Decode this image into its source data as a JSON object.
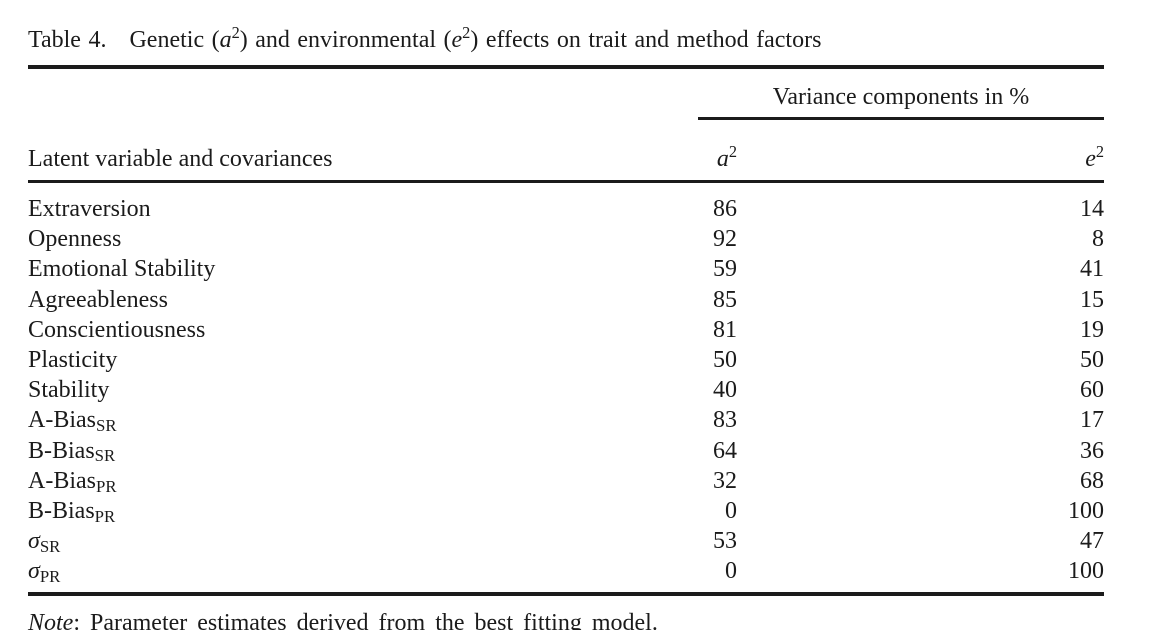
{
  "caption": {
    "label": "Table 4.",
    "part1": "Genetic (",
    "var1": "a",
    "sup1": "2",
    "part2": ") and environmental (",
    "var2": "e",
    "sup2": "2",
    "part3": ") effects on trait and method factors"
  },
  "table": {
    "spanner": "Variance components in %",
    "stub_header": "Latent variable and covariances",
    "col_a": {
      "base": "a",
      "sup": "2"
    },
    "col_e": {
      "base": "e",
      "sup": "2"
    },
    "rows": [
      {
        "label": "Extraversion",
        "sub": "",
        "kind": "name",
        "a2": "86",
        "e2": "14"
      },
      {
        "label": "Openness",
        "sub": "",
        "kind": "name",
        "a2": "92",
        "e2": "8"
      },
      {
        "label": "Emotional Stability",
        "sub": "",
        "kind": "name",
        "a2": "59",
        "e2": "41"
      },
      {
        "label": "Agreeableness",
        "sub": "",
        "kind": "name",
        "a2": "85",
        "e2": "15"
      },
      {
        "label": "Conscientiousness",
        "sub": "",
        "kind": "name",
        "a2": "81",
        "e2": "19"
      },
      {
        "label": "Plasticity",
        "sub": "",
        "kind": "name",
        "a2": "50",
        "e2": "50"
      },
      {
        "label": "Stability",
        "sub": "",
        "kind": "name",
        "a2": "40",
        "e2": "60"
      },
      {
        "label": "A-Bias",
        "sub": "SR",
        "kind": "name",
        "a2": "83",
        "e2": "17"
      },
      {
        "label": "B-Bias",
        "sub": "SR",
        "kind": "name",
        "a2": "64",
        "e2": "36"
      },
      {
        "label": "A-Bias",
        "sub": "PR",
        "kind": "name",
        "a2": "32",
        "e2": "68"
      },
      {
        "label": "B-Bias",
        "sub": "PR",
        "kind": "name",
        "a2": "0",
        "e2": "100"
      },
      {
        "label": "σ",
        "sub": "SR",
        "kind": "symbol",
        "a2": "53",
        "e2": "47"
      },
      {
        "label": "σ",
        "sub": "PR",
        "kind": "symbol",
        "a2": "0",
        "e2": "100"
      }
    ]
  },
  "note": {
    "label": "Note",
    "text": ": Parameter estimates derived from the best fitting model."
  },
  "colors": {
    "text": "#1b1b1b",
    "rule": "#1b1b1b",
    "background": "#ffffff"
  }
}
